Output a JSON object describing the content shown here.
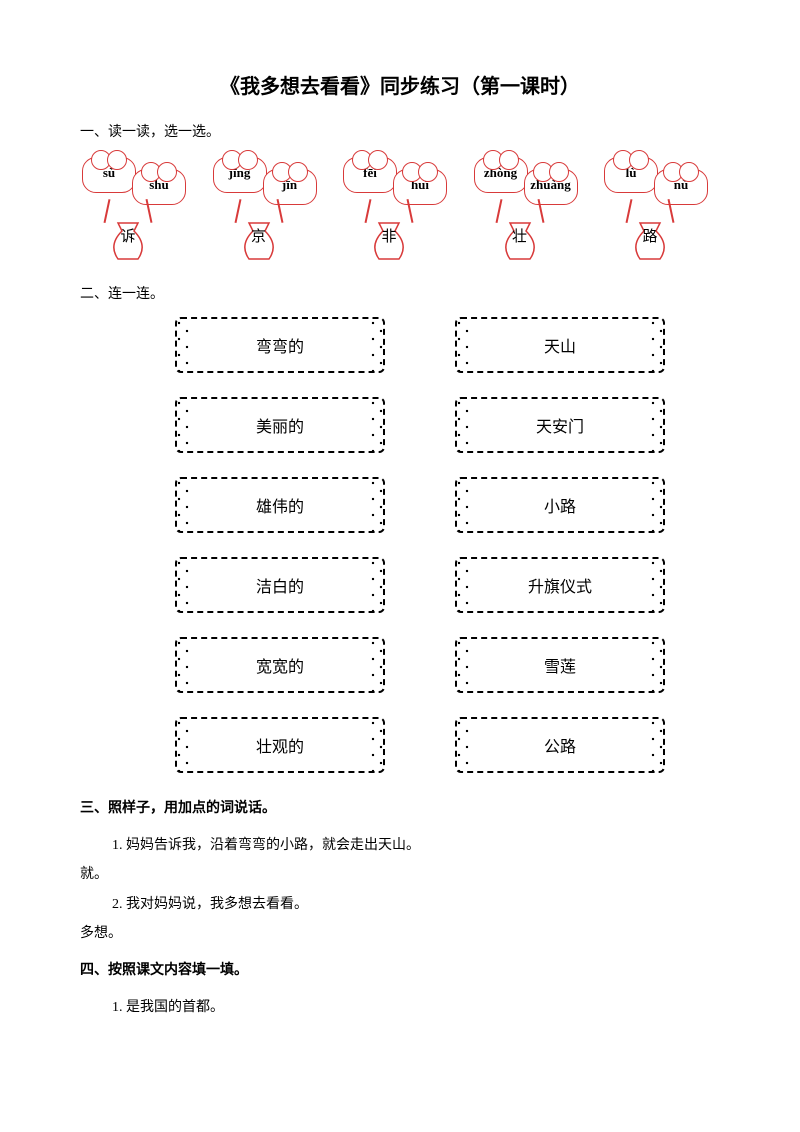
{
  "title": "《我多想去看看》同步练习（第一课时）",
  "colors": {
    "accent": "#d83a3a",
    "text": "#000000",
    "bg": "#ffffff"
  },
  "s1": {
    "heading": "一、读一读，选一选。",
    "items": [
      {
        "left": "sù",
        "right": "shù",
        "char": "诉"
      },
      {
        "left": "jīng",
        "right": "jīn",
        "char": "京"
      },
      {
        "left": "fēi",
        "right": "huī",
        "char": "非"
      },
      {
        "left": "zhòng",
        "right": "zhuàng",
        "char": "壮"
      },
      {
        "left": "lù",
        "right": "nù",
        "char": "路"
      }
    ]
  },
  "s2": {
    "heading": "二、连一连。",
    "left": [
      "弯弯的",
      "美丽的",
      "雄伟的",
      "洁白的",
      "宽宽的",
      "壮观的"
    ],
    "right": [
      "天山",
      "天安门",
      "小路",
      "升旗仪式",
      "雪莲",
      "公路"
    ]
  },
  "s3": {
    "heading": "三、照样子，用加点的词说话。",
    "line1": "1. 妈妈告诉我，沿着弯弯的小路，就会走出天山。",
    "ans1": "就。",
    "line2": "2. 我对妈妈说，我多想去看看。",
    "ans2": "多想。"
  },
  "s4": {
    "heading": "四、按照课文内容填一填。",
    "line1": "1. 是我国的首都。"
  }
}
